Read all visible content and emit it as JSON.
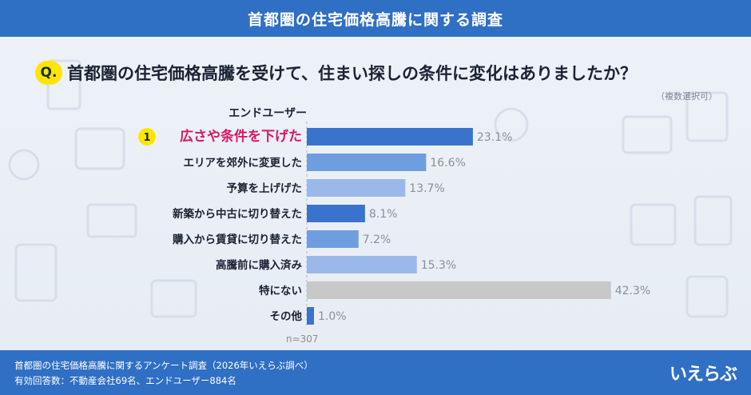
{
  "header": {
    "title": "首都圏の住宅価格高騰に関する調査"
  },
  "question": {
    "badge": "Q.",
    "text": "首都圏の住宅価格高騰を受けて、住まい探しの条件に変化はありましたか？",
    "note": "（複数選択可）"
  },
  "footer": {
    "line1": "首都圏の住宅価格高騰に関するアンケート調査（2026年いえらぶ調べ）",
    "line2": "有効回答数：不動産会社69名、エンドユーザー884名",
    "logo": "いえらぶ"
  },
  "colors": {
    "header_bg": "#2f6fc4",
    "bar_dark": "#3a73cc",
    "bar_mid": "#6f9ee0",
    "bar_light": "#9ab8ea",
    "bar_gray": "#c8c8c8",
    "highlight_text": "#d61a5f",
    "badge_yellow": "#ffe600"
  },
  "chart_data": {
    "type": "bar",
    "orientation": "horizontal",
    "group_label": "エンドユーザー",
    "rank_badge": "1",
    "categories": [
      "広さや条件を下げた",
      "エリアを郊外に変更した",
      "予算を上げげた",
      "新築から中古に切り替えた",
      "購入から賃貸に切り替えた",
      "高騰前に購入済み",
      "特にない",
      "その他"
    ],
    "values": [
      23.1,
      16.6,
      13.7,
      8.1,
      7.2,
      15.3,
      42.3,
      1.0
    ],
    "value_labels": [
      "23.1%",
      "16.6%",
      "13.7%",
      "8.1%",
      "7.2%",
      "15.3%",
      "42.3%",
      "1.0%"
    ],
    "bar_styles": [
      "dark",
      "mid",
      "light",
      "dark",
      "mid",
      "light",
      "gray",
      "dark"
    ],
    "highlight_index": 0,
    "xlim": [
      0,
      45
    ],
    "n_label": "n=307"
  }
}
